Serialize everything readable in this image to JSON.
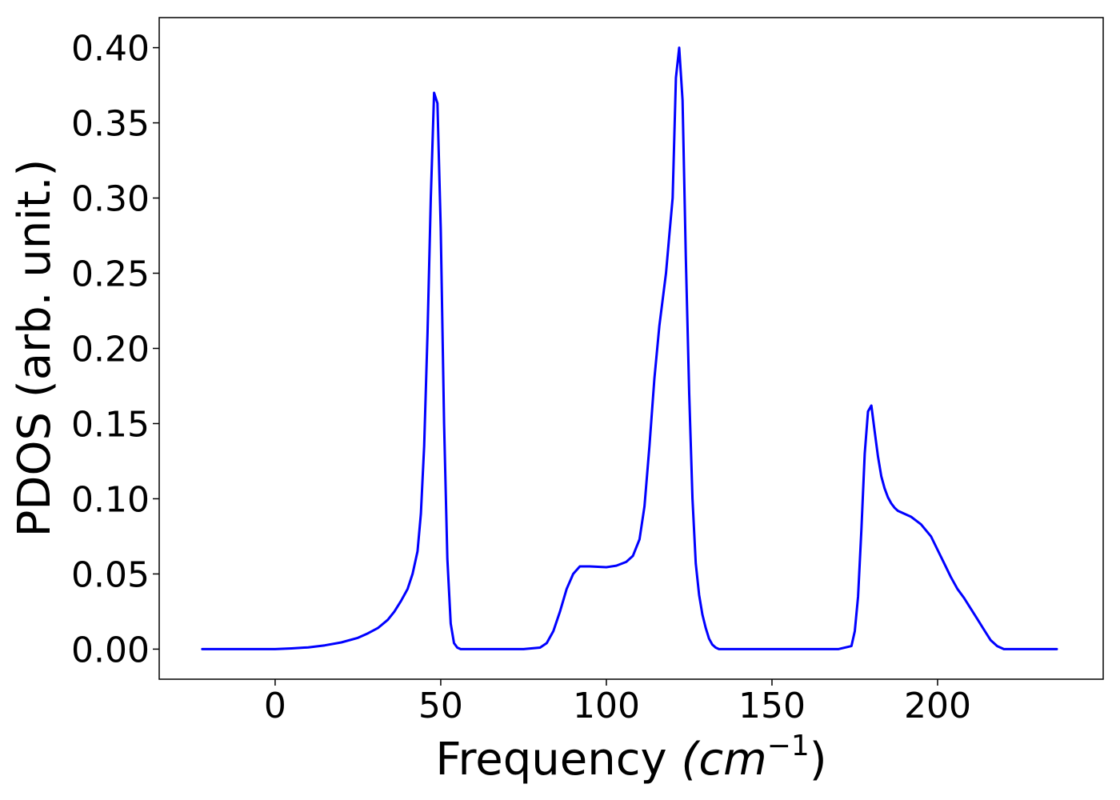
{
  "chart_data": {
    "type": "line",
    "xlabel": "Frequency ",
    "xlabel_unit": "(cm",
    "xlabel_sup": "−1",
    "xlabel_close": ")",
    "ylabel": "PDOS (arb. unit.)",
    "xlim": [
      -35,
      250
    ],
    "ylim": [
      -0.02,
      0.42
    ],
    "xticks": [
      0,
      50,
      100,
      150,
      200
    ],
    "xtick_labels": [
      "0",
      "50",
      "100",
      "150",
      "200"
    ],
    "yticks": [
      0.0,
      0.05,
      0.1,
      0.15,
      0.2,
      0.25,
      0.3,
      0.35,
      0.4
    ],
    "ytick_labels": [
      "0.00",
      "0.05",
      "0.10",
      "0.15",
      "0.20",
      "0.25",
      "0.30",
      "0.35",
      "0.40"
    ],
    "grid": false,
    "series": [
      {
        "color": "#0000ff",
        "x": [
          -22,
          0,
          5,
          10,
          15,
          20,
          25,
          28,
          31,
          34,
          36,
          38,
          40,
          41.5,
          43,
          44,
          45,
          46,
          47,
          48,
          49,
          50,
          51,
          52,
          53,
          54,
          55,
          56,
          57,
          58,
          59,
          60,
          65,
          70,
          75,
          80,
          82,
          84,
          86,
          88,
          90,
          92,
          95,
          100,
          103,
          106,
          108,
          110,
          111.5,
          113,
          114.5,
          116,
          118,
          119,
          120,
          121,
          122,
          123,
          124,
          125,
          126,
          127,
          128,
          129,
          130,
          131,
          132,
          133,
          134,
          135,
          136,
          137,
          140,
          150,
          160,
          170,
          174,
          175,
          176,
          177,
          178,
          179,
          180,
          181,
          182,
          183,
          184,
          185,
          186,
          187,
          188,
          190,
          192,
          195,
          198,
          200,
          202,
          204,
          206,
          208,
          210,
          212,
          214,
          216,
          218,
          220,
          222,
          225,
          230,
          236
        ],
        "y": [
          0.0,
          0.0,
          0.0005,
          0.0012,
          0.0025,
          0.0045,
          0.0075,
          0.0105,
          0.014,
          0.0195,
          0.025,
          0.032,
          0.04,
          0.05,
          0.065,
          0.09,
          0.135,
          0.21,
          0.3,
          0.37,
          0.363,
          0.28,
          0.15,
          0.06,
          0.017,
          0.004,
          0.001,
          0.0,
          0.0,
          0.0,
          0.0,
          0.0,
          0.0,
          0.0,
          0.0,
          0.001,
          0.004,
          0.012,
          0.025,
          0.04,
          0.05,
          0.055,
          0.055,
          0.0545,
          0.0555,
          0.058,
          0.062,
          0.073,
          0.095,
          0.135,
          0.18,
          0.215,
          0.25,
          0.275,
          0.3,
          0.38,
          0.4,
          0.365,
          0.26,
          0.17,
          0.1,
          0.057,
          0.036,
          0.023,
          0.014,
          0.007,
          0.003,
          0.001,
          0.0,
          0.0,
          0.0,
          0.0,
          0.0,
          0.0,
          0.0,
          0.0,
          0.002,
          0.012,
          0.035,
          0.08,
          0.13,
          0.158,
          0.162,
          0.145,
          0.128,
          0.115,
          0.107,
          0.101,
          0.097,
          0.094,
          0.092,
          0.09,
          0.088,
          0.083,
          0.075,
          0.066,
          0.057,
          0.048,
          0.04,
          0.034,
          0.027,
          0.02,
          0.013,
          0.006,
          0.002,
          0.0,
          0.0,
          0.0,
          0.0,
          0.0
        ]
      }
    ]
  }
}
